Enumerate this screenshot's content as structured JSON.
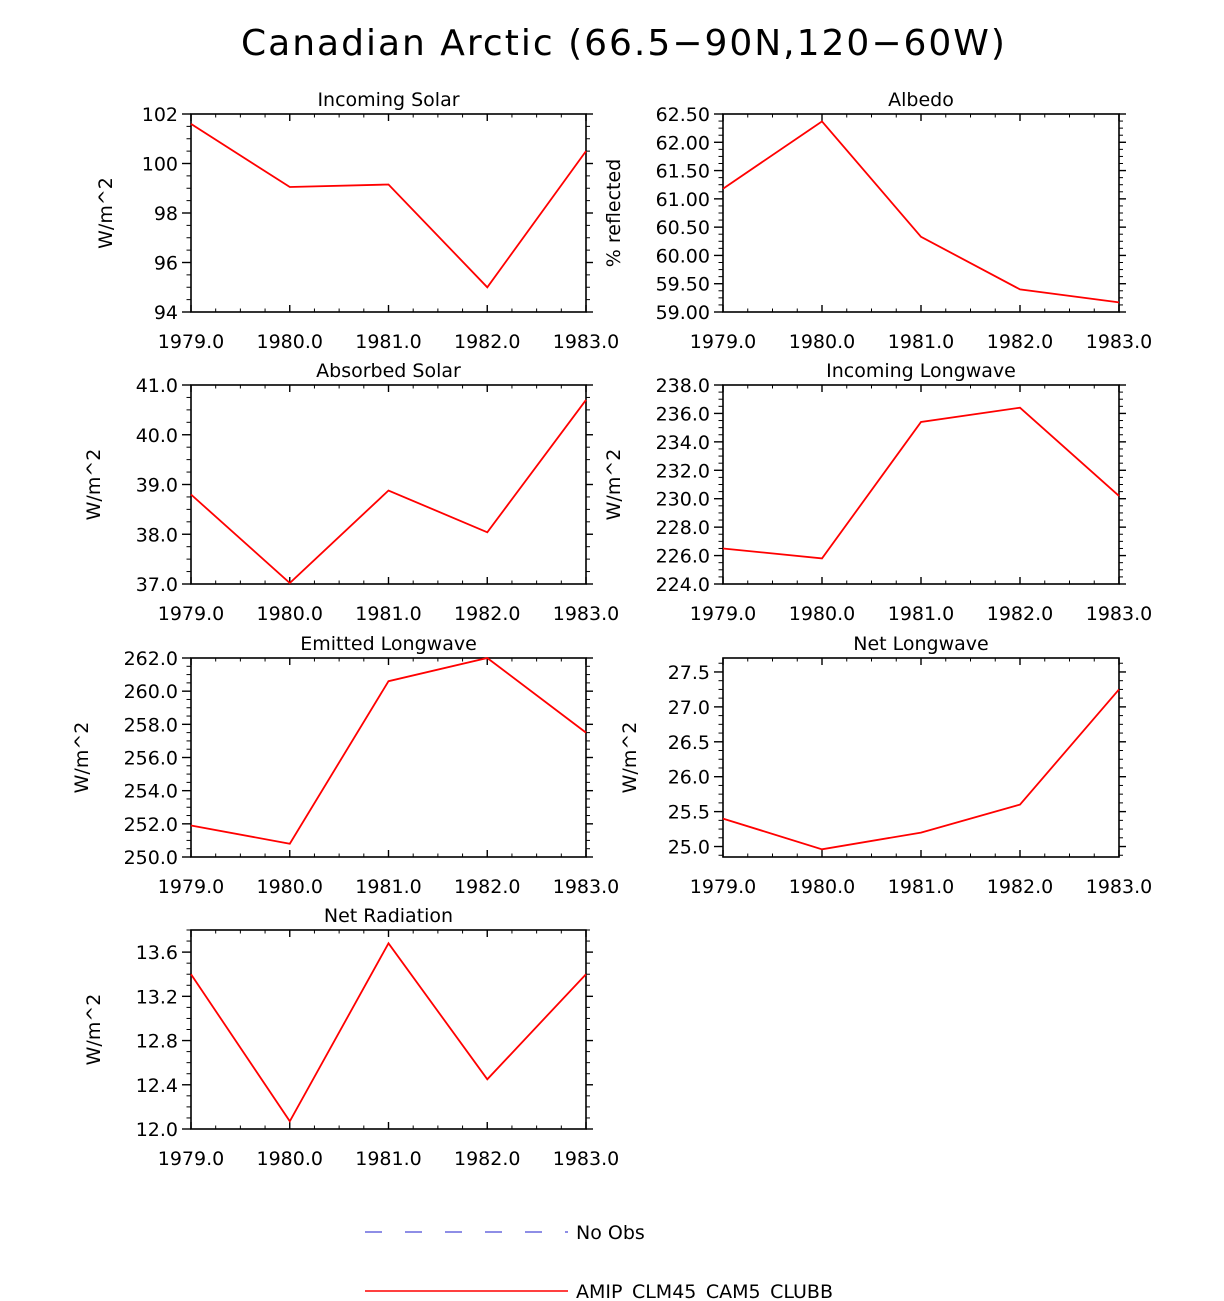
{
  "figure": {
    "title": "Canadian Arctic (66.5−90N,120−60W)"
  },
  "colors": {
    "model_line": "#ff0000",
    "obs_line": "#4a4ad8",
    "axis": "#000000"
  },
  "legend": {
    "obs_label": "No Obs",
    "model_label": "AMIP_CLM45_CAM5_CLUBB"
  },
  "chart_data": [
    {
      "type": "line",
      "title": "Incoming Solar",
      "ylabel": "W/m^2",
      "x": [
        1979,
        1980,
        1981,
        1982,
        1983
      ],
      "xticks": [
        "1979.0",
        "1980.0",
        "1981.0",
        "1982.0",
        "1983.0"
      ],
      "xlim": [
        1979,
        1983
      ],
      "ylim": [
        94,
        102
      ],
      "yticks": [
        94,
        96,
        98,
        100,
        102
      ],
      "ytick_labels": [
        "94",
        "96",
        "98",
        "100",
        "102"
      ],
      "yminor": 4,
      "series": [
        {
          "name": "AMIP_CLM45_CAM5_CLUBB",
          "values": [
            101.6,
            99.05,
            99.15,
            95.0,
            100.5
          ]
        }
      ]
    },
    {
      "type": "line",
      "title": "Albedo",
      "ylabel": "% reflected",
      "x": [
        1979,
        1980,
        1981,
        1982,
        1983
      ],
      "xticks": [
        "1979.0",
        "1980.0",
        "1981.0",
        "1982.0",
        "1983.0"
      ],
      "xlim": [
        1979,
        1983
      ],
      "ylim": [
        59.0,
        62.5
      ],
      "yticks": [
        59.0,
        59.5,
        60.0,
        60.5,
        61.0,
        61.5,
        62.0,
        62.5
      ],
      "ytick_labels": [
        "59.00",
        "59.50",
        "60.00",
        "60.50",
        "61.00",
        "61.50",
        "62.00",
        "62.50"
      ],
      "yminor": 4,
      "series": [
        {
          "name": "AMIP_CLM45_CAM5_CLUBB",
          "values": [
            61.18,
            62.37,
            60.33,
            59.4,
            59.17
          ]
        }
      ]
    },
    {
      "type": "line",
      "title": "Absorbed Solar",
      "ylabel": "W/m^2",
      "x": [
        1979,
        1980,
        1981,
        1982,
        1983
      ],
      "xticks": [
        "1979.0",
        "1980.0",
        "1981.0",
        "1982.0",
        "1983.0"
      ],
      "xlim": [
        1979,
        1983
      ],
      "ylim": [
        37.0,
        41.0
      ],
      "yticks": [
        37,
        38,
        39,
        40,
        41
      ],
      "ytick_labels": [
        "37.0",
        "38.0",
        "39.0",
        "40.0",
        "41.0"
      ],
      "yminor": 4,
      "series": [
        {
          "name": "AMIP_CLM45_CAM5_CLUBB",
          "values": [
            38.8,
            37.02,
            38.88,
            38.04,
            40.7
          ]
        }
      ]
    },
    {
      "type": "line",
      "title": "Incoming Longwave",
      "ylabel": "W/m^2",
      "x": [
        1979,
        1980,
        1981,
        1982,
        1983
      ],
      "xticks": [
        "1979.0",
        "1980.0",
        "1981.0",
        "1982.0",
        "1983.0"
      ],
      "xlim": [
        1979,
        1983
      ],
      "ylim": [
        224,
        238
      ],
      "yticks": [
        224,
        226,
        228,
        230,
        232,
        234,
        236,
        238
      ],
      "ytick_labels": [
        "224.0",
        "226.0",
        "228.0",
        "230.0",
        "232.0",
        "234.0",
        "236.0",
        "238.0"
      ],
      "yminor": 4,
      "series": [
        {
          "name": "AMIP_CLM45_CAM5_CLUBB",
          "values": [
            226.5,
            225.8,
            235.4,
            236.4,
            230.2
          ]
        }
      ]
    },
    {
      "type": "line",
      "title": "Emitted Longwave",
      "ylabel": "W/m^2",
      "x": [
        1979,
        1980,
        1981,
        1982,
        1983
      ],
      "xticks": [
        "1979.0",
        "1980.0",
        "1981.0",
        "1982.0",
        "1983.0"
      ],
      "xlim": [
        1979,
        1983
      ],
      "ylim": [
        250,
        262
      ],
      "yticks": [
        250,
        252,
        254,
        256,
        258,
        260,
        262
      ],
      "ytick_labels": [
        "250.0",
        "252.0",
        "254.0",
        "256.0",
        "258.0",
        "260.0",
        "262.0"
      ],
      "yminor": 4,
      "series": [
        {
          "name": "AMIP_CLM45_CAM5_CLUBB",
          "values": [
            251.9,
            250.8,
            260.6,
            262.0,
            257.5
          ]
        }
      ]
    },
    {
      "type": "line",
      "title": "Net Longwave",
      "ylabel": "W/m^2",
      "x": [
        1979,
        1980,
        1981,
        1982,
        1983
      ],
      "xticks": [
        "1979.0",
        "1980.0",
        "1981.0",
        "1982.0",
        "1983.0"
      ],
      "xlim": [
        1979,
        1983
      ],
      "ylim": [
        24.85,
        27.7
      ],
      "yticks": [
        25.0,
        25.5,
        26.0,
        26.5,
        27.0,
        27.5
      ],
      "ytick_labels": [
        "25.0",
        "25.5",
        "26.0",
        "26.5",
        "27.0",
        "27.5"
      ],
      "yminor": 4,
      "series": [
        {
          "name": "AMIP_CLM45_CAM5_CLUBB",
          "values": [
            25.4,
            24.96,
            25.2,
            25.6,
            27.25
          ]
        }
      ]
    },
    {
      "type": "line",
      "title": "Net Radiation",
      "ylabel": "W/m^2",
      "x": [
        1979,
        1980,
        1981,
        1982,
        1983
      ],
      "xticks": [
        "1979.0",
        "1980.0",
        "1981.0",
        "1982.0",
        "1983.0"
      ],
      "xlim": [
        1979,
        1983
      ],
      "ylim": [
        12.0,
        13.8
      ],
      "yticks": [
        12.0,
        12.4,
        12.8,
        13.2,
        13.6
      ],
      "ytick_labels": [
        "12.0",
        "12.4",
        "12.8",
        "13.2",
        "13.6"
      ],
      "yminor": 4,
      "series": [
        {
          "name": "AMIP_CLM45_CAM5_CLUBB",
          "values": [
            13.4,
            12.07,
            13.68,
            12.45,
            13.4
          ]
        }
      ]
    }
  ]
}
